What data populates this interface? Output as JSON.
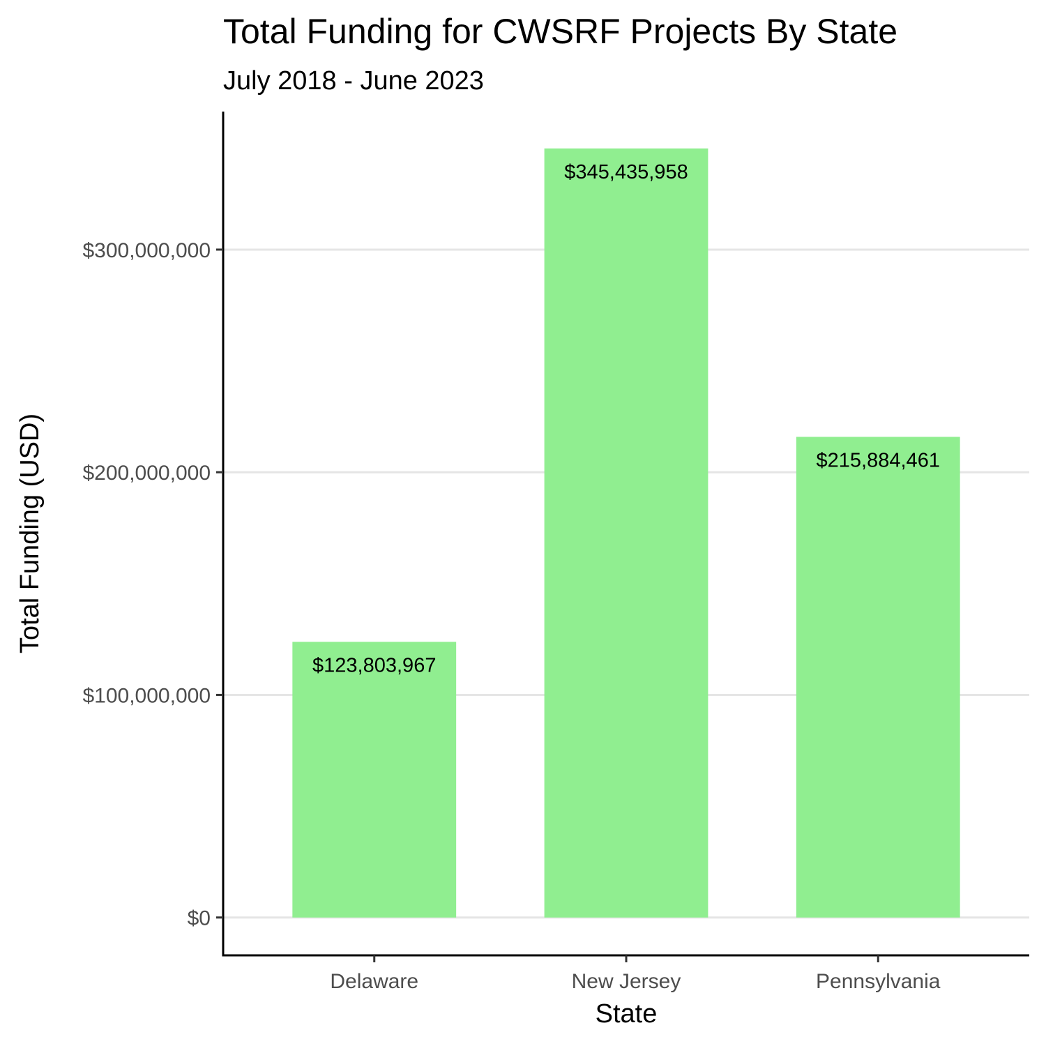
{
  "chart_data": {
    "type": "bar",
    "title": "Total Funding for CWSRF Projects By State",
    "subtitle": "July 2018 - June 2023",
    "xlabel": "State",
    "ylabel": "Total Funding (USD)",
    "categories": [
      "Delaware",
      "New Jersey",
      "Pennsylvania"
    ],
    "values": [
      123803967,
      345435958,
      215884461
    ],
    "data_labels": [
      "$123,803,967",
      "$345,435,958",
      "$215,884,461"
    ],
    "ylim": [
      -17000000,
      362000000
    ],
    "y_ticks": [
      0,
      100000000,
      200000000,
      300000000
    ],
    "y_tick_labels": [
      "$0",
      "$100,000,000",
      "$200,000,000",
      "$300,000,000"
    ],
    "grid": "horizontal-major",
    "legend": "none",
    "colors": {
      "bar": "#90ee90",
      "grid": "#e5e5e5",
      "axis": "#000000",
      "tick_text": "#4d4d4d",
      "background": "#ffffff"
    }
  }
}
